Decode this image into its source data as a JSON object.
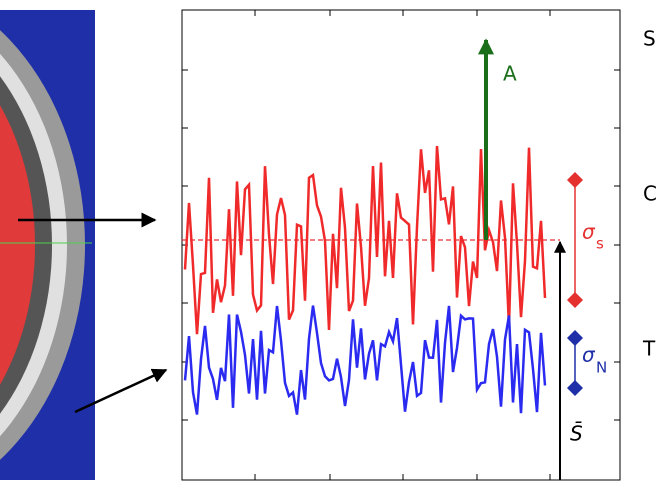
{
  "annotations": {
    "amplitude": "A",
    "sigma": "σ",
    "sigma_s_sub": "s",
    "sigma_n_sub": "N",
    "mean": "S̄"
  },
  "side_labels": [
    "S",
    "C",
    "T"
  ]
}
